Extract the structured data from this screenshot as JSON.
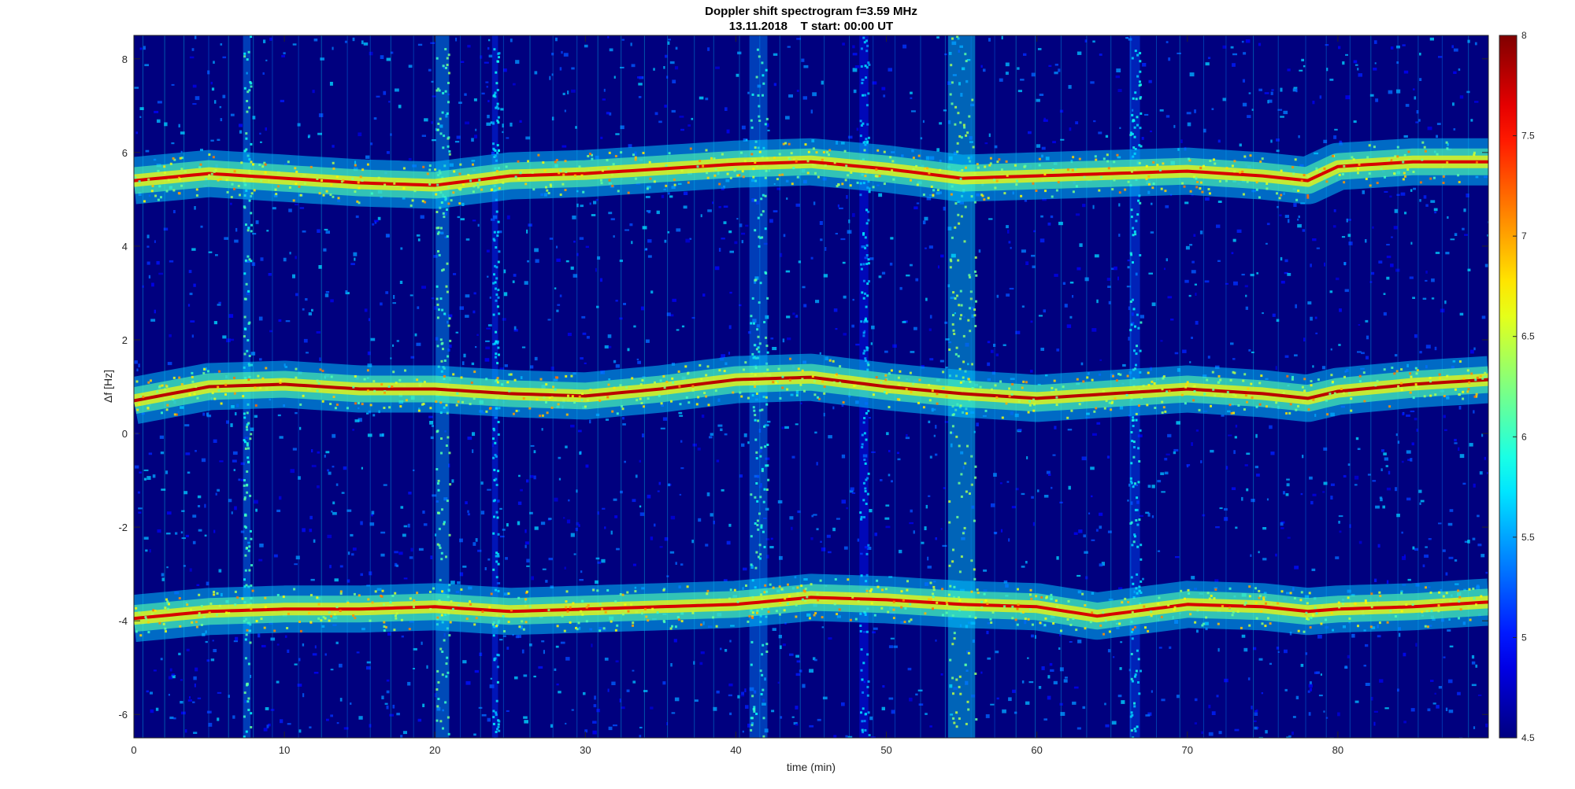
{
  "chart_data": {
    "type": "heatmap",
    "title": "Doppler shift spectrogram f=3.59 MHz",
    "subtitle": "13.11.2018    T start: 00:00 UT",
    "xlabel": "time (min)",
    "ylabel": "Δf [Hz]",
    "xlim": [
      0,
      90
    ],
    "ylim": [
      -6.5,
      8.5
    ],
    "xticks": [
      0,
      10,
      20,
      30,
      40,
      50,
      60,
      70,
      80
    ],
    "yticks": [
      -6,
      -4,
      -2,
      0,
      2,
      4,
      6,
      8
    ],
    "colorbar": {
      "colormap": "jet",
      "clim": [
        4.5,
        8
      ],
      "ticks": [
        4.5,
        5,
        5.5,
        6,
        6.5,
        7,
        7.5,
        8
      ]
    },
    "background_level": 4.8,
    "interference_columns": [
      {
        "t": 7.5,
        "width": 0.5,
        "level": 5.8
      },
      {
        "t": 20.5,
        "width": 0.9,
        "level": 5.9
      },
      {
        "t": 24.0,
        "width": 0.4,
        "level": 5.5
      },
      {
        "t": 41.5,
        "width": 1.2,
        "level": 5.8
      },
      {
        "t": 48.5,
        "width": 0.6,
        "level": 5.4
      },
      {
        "t": 55.0,
        "width": 1.8,
        "level": 6.1
      },
      {
        "t": 66.5,
        "width": 0.7,
        "level": 5.6
      }
    ],
    "series": [
      {
        "level": 7.7,
        "t": [
          0,
          5,
          10,
          15,
          20,
          25,
          30,
          35,
          40,
          45,
          50,
          55,
          60,
          65,
          70,
          75,
          78,
          80,
          85,
          90
        ],
        "freq": [
          5.4,
          5.55,
          5.45,
          5.35,
          5.3,
          5.5,
          5.55,
          5.65,
          5.75,
          5.8,
          5.65,
          5.45,
          5.5,
          5.55,
          5.6,
          5.5,
          5.4,
          5.7,
          5.8,
          5.8
        ]
      },
      {
        "level": 7.8,
        "t": [
          0,
          5,
          10,
          15,
          20,
          25,
          30,
          35,
          40,
          45,
          50,
          55,
          60,
          65,
          70,
          75,
          78,
          80,
          85,
          90
        ],
        "freq": [
          0.7,
          1.0,
          1.05,
          0.95,
          0.95,
          0.85,
          0.8,
          0.95,
          1.15,
          1.2,
          1.0,
          0.85,
          0.75,
          0.85,
          0.95,
          0.85,
          0.75,
          0.9,
          1.05,
          1.15
        ]
      },
      {
        "level": 7.7,
        "t": [
          0,
          5,
          10,
          15,
          20,
          25,
          30,
          35,
          40,
          45,
          50,
          55,
          60,
          64,
          70,
          75,
          78,
          80,
          85,
          90
        ],
        "freq": [
          -3.95,
          -3.8,
          -3.75,
          -3.75,
          -3.7,
          -3.8,
          -3.75,
          -3.7,
          -3.65,
          -3.5,
          -3.55,
          -3.65,
          -3.7,
          -3.9,
          -3.65,
          -3.7,
          -3.8,
          -3.75,
          -3.7,
          -3.6
        ]
      }
    ]
  }
}
